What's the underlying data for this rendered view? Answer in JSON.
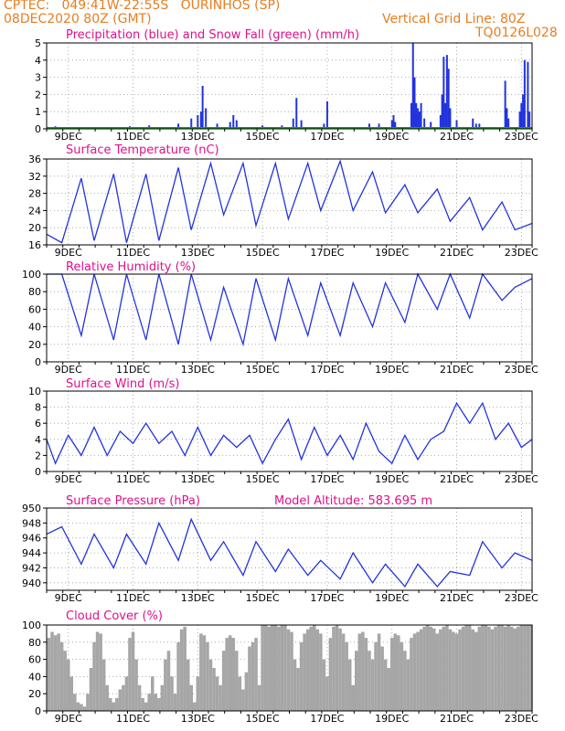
{
  "header": {
    "line1_left": "CPTEC:   049:41W-22:55S   OURINHOS (SP)",
    "line2_left": "08DEC2020 80Z (GMT)",
    "line2_right": "Vertical Grid Line: 80Z",
    "line3_right": "TQ0126L028"
  },
  "colors": {
    "header": "#e67e22",
    "title": "#e0108a",
    "series": "#2233dd",
    "snow": "#16a016",
    "cloud": "#a6a6a6",
    "grid": "#999999"
  },
  "x_tick_labels": [
    "9DEC",
    "11DEC",
    "13DEC",
    "15DEC",
    "17DEC",
    "19DEC",
    "21DEC",
    "23DEC"
  ],
  "chart_data": [
    {
      "type": "bar",
      "title": "Precipitation (blue) and Snow Fall (green) (mm/h)",
      "x_range_days": [
        8.33,
        23.33
      ],
      "ylim": [
        0,
        5
      ],
      "yticks": [
        0,
        1,
        2,
        3,
        4,
        5
      ],
      "grid": "dotted",
      "series": [
        {
          "name": "Precipitation (blue)",
          "color": "#2233dd",
          "x": [
            8.6,
            10.9,
            11.5,
            12.4,
            12.8,
            13.0,
            13.1,
            13.15,
            13.25,
            13.6,
            14.0,
            14.1,
            14.2,
            15.0,
            15.6,
            15.95,
            16.05,
            16.2,
            16.9,
            17.0,
            18.3,
            18.6,
            19.0,
            19.05,
            19.1,
            19.6,
            19.65,
            19.7,
            19.75,
            19.8,
            19.85,
            19.9,
            20.0,
            20.2,
            20.5,
            20.55,
            20.6,
            20.65,
            20.7,
            20.75,
            20.8,
            21.0,
            21.5,
            21.6,
            21.7,
            22.5,
            22.55,
            22.6,
            22.95,
            23.0,
            23.05,
            23.1,
            23.2,
            23.25
          ],
          "y": [
            0.15,
            0.15,
            0.2,
            0.3,
            0.6,
            0.8,
            1.0,
            2.5,
            1.2,
            0.3,
            0.4,
            0.8,
            0.5,
            0.2,
            0.2,
            0.6,
            1.8,
            0.5,
            0.3,
            1.6,
            0.3,
            0.3,
            0.5,
            0.8,
            0.4,
            1.5,
            5.0,
            3.0,
            1.5,
            1.2,
            1.0,
            1.5,
            0.6,
            0.4,
            0.8,
            2.0,
            4.2,
            1.5,
            4.3,
            3.5,
            1.2,
            0.5,
            0.6,
            0.3,
            0.3,
            2.8,
            1.2,
            0.6,
            1.0,
            1.5,
            2.0,
            4.0,
            3.9,
            1.0
          ]
        },
        {
          "name": "Snow Fall (green)",
          "color": "#16a016",
          "x": [
            8.33,
            23.33
          ],
          "y": [
            0,
            0
          ]
        }
      ]
    },
    {
      "type": "line",
      "title": "Surface Temperature (nC)",
      "ylim": [
        16,
        36
      ],
      "yticks": [
        16,
        20,
        24,
        28,
        32,
        36
      ],
      "grid": "dotted",
      "series": [
        {
          "name": "",
          "color": "#2233dd",
          "x": [
            8.33,
            8.8,
            9.4,
            9.8,
            10.4,
            10.8,
            11.4,
            11.8,
            12.4,
            12.8,
            13.4,
            13.8,
            14.4,
            14.8,
            15.4,
            15.8,
            16.4,
            16.8,
            17.4,
            17.8,
            18.4,
            18.8,
            19.4,
            19.8,
            20.4,
            20.8,
            21.4,
            21.8,
            22.4,
            22.8,
            23.33
          ],
          "y": [
            18.5,
            16.5,
            31.5,
            17.0,
            32.5,
            16.5,
            32.5,
            17.0,
            34.0,
            19.5,
            35.0,
            23.0,
            35.0,
            20.5,
            35.0,
            22.0,
            35.0,
            24.0,
            35.5,
            24.0,
            33.0,
            23.5,
            30.0,
            23.5,
            29.0,
            21.5,
            27.0,
            19.5,
            26.0,
            19.5,
            21.0
          ]
        }
      ]
    },
    {
      "type": "line",
      "title": "Relative Humidity (%)",
      "ylim": [
        0,
        100
      ],
      "yticks": [
        0,
        20,
        40,
        60,
        80,
        100
      ],
      "grid": "dotted",
      "series": [
        {
          "name": "",
          "color": "#2233dd",
          "x": [
            8.33,
            8.8,
            9.4,
            9.8,
            10.4,
            10.8,
            11.4,
            11.8,
            12.4,
            12.8,
            13.4,
            13.8,
            14.4,
            14.8,
            15.4,
            15.8,
            16.4,
            16.8,
            17.4,
            17.8,
            18.4,
            18.8,
            19.4,
            19.8,
            20.4,
            20.8,
            21.4,
            21.8,
            22.4,
            22.8,
            23.33
          ],
          "y": [
            100,
            100,
            30,
            100,
            25,
            100,
            25,
            100,
            20,
            100,
            25,
            85,
            20,
            95,
            25,
            95,
            30,
            90,
            30,
            90,
            40,
            90,
            45,
            100,
            60,
            100,
            50,
            100,
            70,
            85,
            95
          ]
        }
      ]
    },
    {
      "type": "line",
      "title": "Surface Wind (m/s)",
      "ylim": [
        0,
        10
      ],
      "yticks": [
        0,
        2,
        4,
        6,
        8,
        10
      ],
      "grid": "dotted",
      "series": [
        {
          "name": "",
          "color": "#2233dd",
          "x": [
            8.33,
            8.6,
            9.0,
            9.4,
            9.8,
            10.2,
            10.6,
            11.0,
            11.4,
            11.8,
            12.2,
            12.6,
            13.0,
            13.4,
            13.8,
            14.2,
            14.6,
            15.0,
            15.4,
            15.8,
            16.2,
            16.6,
            17.0,
            17.4,
            17.8,
            18.2,
            18.6,
            19.0,
            19.4,
            19.8,
            20.2,
            20.6,
            21.0,
            21.4,
            21.8,
            22.2,
            22.6,
            23.0,
            23.33
          ],
          "y": [
            4.0,
            1.0,
            4.5,
            2.0,
            5.5,
            2.0,
            5.0,
            3.5,
            6.0,
            3.5,
            5.0,
            2.0,
            5.5,
            2.0,
            4.5,
            3.0,
            4.5,
            1.0,
            4.0,
            6.5,
            1.5,
            5.5,
            2.0,
            4.5,
            1.5,
            6.0,
            2.5,
            1.0,
            4.5,
            1.5,
            4.0,
            5.0,
            8.5,
            6.0,
            8.5,
            4.0,
            6.0,
            3.0,
            4.0
          ]
        }
      ]
    },
    {
      "type": "line",
      "title": "Surface Pressure (hPa)",
      "annotation": "Model Altitude: 583.695 m",
      "ylim": [
        939,
        950
      ],
      "yticks": [
        940,
        942,
        944,
        946,
        948,
        950
      ],
      "grid": "dotted",
      "series": [
        {
          "name": "",
          "color": "#2233dd",
          "x": [
            8.33,
            8.8,
            9.4,
            9.8,
            10.4,
            10.8,
            11.4,
            11.8,
            12.4,
            12.8,
            13.4,
            13.8,
            14.4,
            14.8,
            15.4,
            15.8,
            16.4,
            16.8,
            17.4,
            17.8,
            18.4,
            18.8,
            19.4,
            19.8,
            20.4,
            20.8,
            21.4,
            21.8,
            22.4,
            22.8,
            23.33
          ],
          "y": [
            946.5,
            947.5,
            942.5,
            946.5,
            942.0,
            946.5,
            942.5,
            948.0,
            943.0,
            948.5,
            943.0,
            945.5,
            941.0,
            945.5,
            941.5,
            944.5,
            941.0,
            943.0,
            940.5,
            944.0,
            940.0,
            942.5,
            939.5,
            942.5,
            939.5,
            941.5,
            941.0,
            945.5,
            942.0,
            944.0,
            943.0
          ]
        }
      ]
    },
    {
      "type": "bar",
      "title": "Cloud Cover (%)",
      "ylim": [
        0,
        100
      ],
      "yticks": [
        0,
        20,
        40,
        60,
        80,
        100
      ],
      "grid": "dotted",
      "series": [
        {
          "name": "",
          "color": "#a6a6a6",
          "x": [
            8.4,
            8.5,
            8.6,
            8.7,
            8.8,
            8.9,
            9.0,
            9.1,
            9.2,
            9.3,
            9.4,
            9.5,
            9.6,
            9.7,
            9.8,
            9.9,
            10.0,
            10.1,
            10.2,
            10.3,
            10.4,
            10.5,
            10.6,
            10.7,
            10.8,
            10.9,
            11.0,
            11.1,
            11.2,
            11.3,
            11.4,
            11.5,
            11.6,
            11.7,
            11.8,
            11.9,
            12.0,
            12.1,
            12.2,
            12.3,
            12.4,
            12.5,
            12.6,
            12.7,
            12.8,
            12.9,
            13.0,
            13.1,
            13.2,
            13.3,
            13.4,
            13.5,
            13.6,
            13.7,
            13.8,
            13.9,
            14.0,
            14.1,
            14.2,
            14.3,
            14.4,
            14.5,
            14.6,
            14.7,
            14.8,
            14.9,
            15.0,
            15.1,
            15.2,
            15.3,
            15.4,
            15.5,
            15.6,
            15.7,
            15.8,
            15.9,
            16.0,
            16.1,
            16.2,
            16.3,
            16.4,
            16.5,
            16.6,
            16.7,
            16.8,
            16.9,
            17.0,
            17.1,
            17.2,
            17.3,
            17.4,
            17.5,
            17.6,
            17.7,
            17.8,
            17.9,
            18.0,
            18.1,
            18.2,
            18.3,
            18.4,
            18.5,
            18.6,
            18.7,
            18.8,
            18.9,
            19.0,
            19.1,
            19.2,
            19.3,
            19.4,
            19.5,
            19.6,
            19.7,
            19.8,
            19.9,
            20.0,
            20.1,
            20.2,
            20.3,
            20.4,
            20.5,
            20.6,
            20.7,
            20.8,
            20.9,
            21.0,
            21.1,
            21.2,
            21.3,
            21.4,
            21.5,
            21.6,
            21.7,
            21.8,
            21.9,
            22.0,
            22.1,
            22.2,
            22.3,
            22.4,
            22.5,
            22.6,
            22.7,
            22.8,
            22.9,
            23.0,
            23.1,
            23.2,
            23.3
          ],
          "y": [
            85,
            92,
            88,
            90,
            80,
            70,
            60,
            40,
            20,
            10,
            8,
            5,
            20,
            50,
            80,
            92,
            90,
            60,
            30,
            15,
            10,
            15,
            25,
            30,
            40,
            85,
            92,
            60,
            30,
            15,
            10,
            20,
            40,
            20,
            15,
            30,
            60,
            70,
            40,
            20,
            80,
            95,
            98,
            60,
            30,
            10,
            40,
            90,
            88,
            80,
            60,
            50,
            40,
            30,
            70,
            85,
            88,
            85,
            70,
            40,
            25,
            45,
            75,
            80,
            85,
            30,
            100,
            100,
            98,
            100,
            100,
            98,
            100,
            100,
            95,
            92,
            60,
            50,
            80,
            90,
            95,
            98,
            100,
            95,
            90,
            60,
            40,
            85,
            98,
            100,
            96,
            90,
            80,
            60,
            30,
            70,
            90,
            92,
            85,
            70,
            60,
            80,
            90,
            75,
            60,
            50,
            85,
            90,
            88,
            80,
            70,
            60,
            85,
            90,
            92,
            95,
            98,
            100,
            98,
            96,
            90,
            95,
            98,
            100,
            95,
            92,
            90,
            95,
            98,
            100,
            100,
            95,
            92,
            98,
            100,
            100,
            98,
            95,
            98,
            100,
            100,
            98,
            100,
            98,
            96,
            98,
            100,
            100,
            100,
            100
          ]
        }
      ]
    }
  ]
}
